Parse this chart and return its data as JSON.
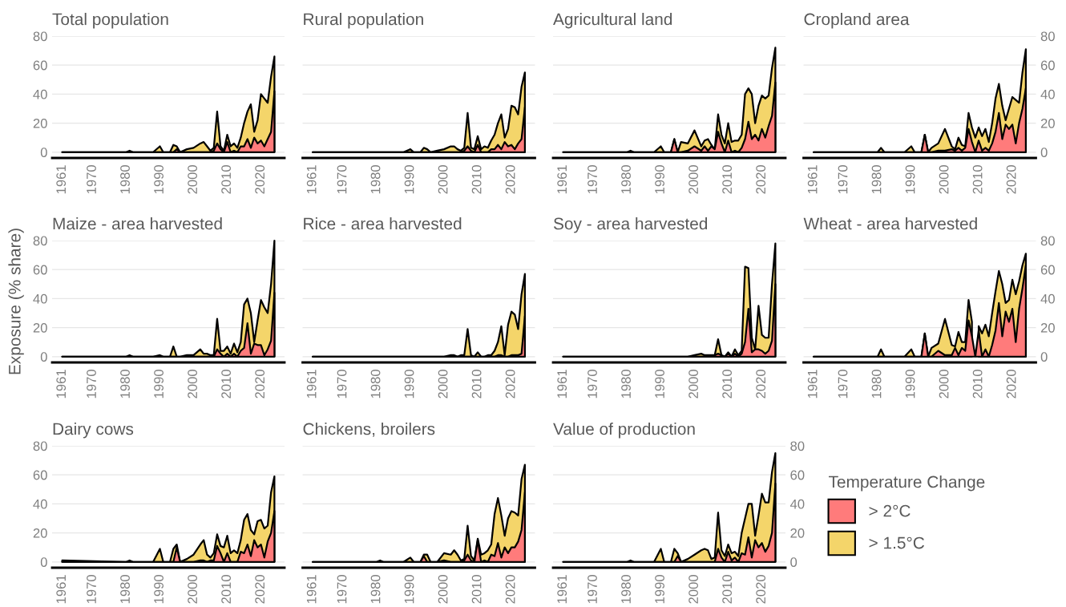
{
  "chart_data": [
    {
      "type": "area",
      "title": "Total population",
      "x": [
        1961,
        1980,
        1981,
        1982,
        1985,
        1988,
        1990,
        1991,
        1993,
        1994,
        1995,
        1996,
        1998,
        2000,
        2002,
        2003,
        2004,
        2005,
        2006,
        2007,
        2008,
        2009,
        2010,
        2011,
        2012,
        2013,
        2014,
        2015,
        2016,
        2017,
        2018,
        2019,
        2020,
        2021,
        2022,
        2023,
        2024
      ],
      "xlim": [
        1958,
        2027
      ],
      "xticks": [
        1961,
        1970,
        1980,
        1990,
        2000,
        2010,
        2020
      ],
      "ylim": [
        -4,
        80
      ],
      "yticks": [
        0,
        20,
        40,
        60,
        80
      ],
      "grid": "y",
      "series": [
        {
          "color": "#ff7b7b",
          "values": [
            0,
            0,
            0,
            0,
            0,
            0,
            0,
            0,
            0,
            0,
            2,
            0,
            0,
            0,
            0,
            0,
            0,
            0,
            1,
            6,
            2,
            0,
            7,
            0,
            1,
            0,
            4,
            4,
            9,
            3,
            10,
            6,
            8,
            4,
            9,
            14,
            42
          ]
        },
        {
          "color": "#f4d56a",
          "values": [
            0,
            0,
            1,
            0,
            0,
            0,
            4,
            0,
            0,
            5,
            4,
            0,
            2,
            3,
            6,
            7,
            4,
            1,
            3,
            28,
            4,
            1,
            12,
            4,
            6,
            3,
            10,
            20,
            28,
            33,
            14,
            22,
            40,
            37,
            34,
            52,
            66
          ]
        }
      ]
    },
    {
      "type": "area",
      "title": "Rural population",
      "x": [
        1961,
        1980,
        1981,
        1982,
        1985,
        1988,
        1990,
        1991,
        1993,
        1994,
        1995,
        1996,
        1998,
        2000,
        2002,
        2003,
        2004,
        2005,
        2006,
        2007,
        2008,
        2009,
        2010,
        2011,
        2012,
        2013,
        2014,
        2015,
        2016,
        2017,
        2018,
        2019,
        2020,
        2021,
        2022,
        2023,
        2024
      ],
      "xlim": [
        1958,
        2027
      ],
      "xticks": [
        1961,
        1970,
        1980,
        1990,
        2000,
        2010,
        2020
      ],
      "ylim": [
        -4,
        80
      ],
      "yticks": [
        0,
        20,
        40,
        60,
        80
      ],
      "grid": "y",
      "tick_labels": "x",
      "series": [
        {
          "color": "#ff7b7b",
          "values": [
            0,
            0,
            0,
            0,
            0,
            0,
            0,
            0,
            0,
            0,
            0,
            0,
            0,
            0,
            0,
            0,
            0,
            0,
            1,
            4,
            1,
            0,
            5,
            0,
            0,
            0,
            2,
            2,
            5,
            2,
            7,
            4,
            5,
            2,
            6,
            9,
            31
          ]
        },
        {
          "color": "#f4d56a",
          "values": [
            0,
            0,
            0,
            0,
            0,
            0,
            2,
            0,
            0,
            3,
            2,
            0,
            1,
            2,
            4,
            4,
            2,
            1,
            3,
            27,
            3,
            2,
            11,
            2,
            4,
            3,
            8,
            12,
            20,
            26,
            10,
            16,
            32,
            31,
            26,
            45,
            55
          ]
        }
      ]
    },
    {
      "type": "area",
      "title": "Agricultural land",
      "x": [
        1961,
        1980,
        1981,
        1982,
        1985,
        1988,
        1990,
        1991,
        1993,
        1994,
        1995,
        1996,
        1998,
        2000,
        2002,
        2003,
        2004,
        2005,
        2006,
        2007,
        2008,
        2009,
        2010,
        2011,
        2012,
        2013,
        2014,
        2015,
        2016,
        2017,
        2018,
        2019,
        2020,
        2021,
        2022,
        2023,
        2024
      ],
      "xlim": [
        1958,
        2027
      ],
      "xticks": [
        1961,
        1970,
        1980,
        1990,
        2000,
        2010,
        2020
      ],
      "ylim": [
        -4,
        80
      ],
      "yticks": [
        0,
        20,
        40,
        60,
        80
      ],
      "grid": "y",
      "tick_labels": "x",
      "series": [
        {
          "color": "#ff7b7b",
          "values": [
            0,
            0,
            0,
            0,
            0,
            0,
            0,
            0,
            0,
            9,
            0,
            0,
            1,
            4,
            1,
            4,
            1,
            4,
            2,
            14,
            6,
            0,
            8,
            0,
            1,
            0,
            3,
            9,
            21,
            9,
            12,
            8,
            16,
            10,
            18,
            25,
            48
          ]
        },
        {
          "color": "#f4d56a",
          "values": [
            0,
            0,
            1,
            0,
            0,
            0,
            4,
            0,
            0,
            9,
            0,
            7,
            6,
            15,
            4,
            8,
            9,
            5,
            2,
            26,
            12,
            6,
            20,
            7,
            8,
            8,
            12,
            40,
            44,
            40,
            20,
            32,
            39,
            37,
            39,
            58,
            72
          ]
        }
      ]
    },
    {
      "type": "area",
      "title": "Cropland area",
      "x": [
        1961,
        1980,
        1981,
        1982,
        1985,
        1988,
        1990,
        1991,
        1993,
        1994,
        1995,
        1996,
        1998,
        2000,
        2002,
        2003,
        2004,
        2005,
        2006,
        2007,
        2008,
        2009,
        2010,
        2011,
        2012,
        2013,
        2014,
        2015,
        2016,
        2017,
        2018,
        2019,
        2020,
        2021,
        2022,
        2023,
        2024
      ],
      "xlim": [
        1958,
        2027
      ],
      "xticks": [
        1961,
        1970,
        1980,
        1990,
        2000,
        2010,
        2020
      ],
      "ylim": [
        -4,
        80
      ],
      "yticks": [
        0,
        20,
        40,
        60,
        80
      ],
      "grid": "y",
      "series": [
        {
          "color": "#ff7b7b",
          "values": [
            0,
            0,
            0,
            0,
            0,
            0,
            0,
            0,
            0,
            12,
            0,
            0,
            1,
            1,
            2,
            1,
            3,
            1,
            3,
            16,
            7,
            0,
            8,
            1,
            3,
            1,
            6,
            14,
            27,
            9,
            19,
            16,
            19,
            6,
            20,
            30,
            44
          ]
        },
        {
          "color": "#f4d56a",
          "values": [
            0,
            0,
            3,
            0,
            0,
            0,
            4,
            0,
            0,
            12,
            0,
            3,
            6,
            16,
            4,
            2,
            10,
            5,
            4,
            27,
            17,
            10,
            17,
            11,
            16,
            7,
            20,
            37,
            47,
            32,
            22,
            30,
            38,
            36,
            34,
            55,
            71
          ]
        }
      ]
    },
    {
      "type": "area",
      "title": "Maize - area harvested",
      "ylabel": "Exposure (% share)",
      "x": [
        1961,
        1980,
        1981,
        1982,
        1985,
        1988,
        1990,
        1991,
        1993,
        1994,
        1995,
        1996,
        1998,
        2000,
        2002,
        2003,
        2004,
        2005,
        2006,
        2007,
        2008,
        2009,
        2010,
        2011,
        2012,
        2013,
        2014,
        2015,
        2016,
        2017,
        2018,
        2019,
        2020,
        2021,
        2022,
        2023,
        2024
      ],
      "xlim": [
        1958,
        2027
      ],
      "xticks": [
        1961,
        1970,
        1980,
        1990,
        2000,
        2010,
        2020
      ],
      "ylim": [
        -4,
        80
      ],
      "yticks": [
        0,
        20,
        40,
        60,
        80
      ],
      "grid": "y",
      "series": [
        {
          "color": "#ff7b7b",
          "values": [
            0,
            0,
            0,
            0,
            0,
            0,
            0,
            0,
            0,
            0,
            0,
            0,
            0,
            0,
            0,
            0,
            0,
            0,
            0,
            5,
            2,
            0,
            2,
            0,
            2,
            0,
            4,
            6,
            23,
            2,
            9,
            8,
            8,
            1,
            5,
            11,
            44
          ]
        },
        {
          "color": "#f4d56a",
          "values": [
            0,
            0,
            1,
            0,
            0,
            0,
            1,
            0,
            0,
            7,
            0,
            0,
            1,
            1,
            5,
            2,
            2,
            1,
            1,
            26,
            4,
            4,
            7,
            2,
            9,
            3,
            10,
            36,
            40,
            30,
            10,
            25,
            39,
            34,
            30,
            50,
            80
          ]
        }
      ]
    },
    {
      "type": "area",
      "title": "Rice - area harvested",
      "x": [
        1961,
        1980,
        1981,
        1982,
        1985,
        1988,
        1990,
        1991,
        1993,
        1994,
        1995,
        1996,
        1998,
        2000,
        2002,
        2003,
        2004,
        2005,
        2006,
        2007,
        2008,
        2009,
        2010,
        2011,
        2012,
        2013,
        2014,
        2015,
        2016,
        2017,
        2018,
        2019,
        2020,
        2021,
        2022,
        2023,
        2024
      ],
      "xlim": [
        1958,
        2027
      ],
      "xticks": [
        1961,
        1970,
        1980,
        1990,
        2000,
        2010,
        2020
      ],
      "ylim": [
        -4,
        80
      ],
      "yticks": [
        0,
        20,
        40,
        60,
        80
      ],
      "grid": "y",
      "tick_labels": "x",
      "series": [
        {
          "color": "#ff7b7b",
          "values": [
            0,
            0,
            0,
            0,
            0,
            0,
            0,
            0,
            0,
            0,
            0,
            0,
            0,
            0,
            0,
            0,
            0,
            0,
            0,
            0,
            0,
            0,
            0,
            0,
            0,
            0,
            0,
            0,
            1,
            1,
            0,
            0,
            1,
            1,
            1,
            2,
            28
          ]
        },
        {
          "color": "#f4d56a",
          "values": [
            0,
            0,
            0,
            0,
            0,
            0,
            0,
            0,
            0,
            0,
            0,
            0,
            0,
            0,
            1,
            1,
            0,
            1,
            1,
            19,
            1,
            0,
            3,
            0,
            0,
            1,
            1,
            4,
            10,
            21,
            1,
            22,
            31,
            29,
            19,
            43,
            57
          ]
        }
      ]
    },
    {
      "type": "area",
      "title": "Soy - area harvested",
      "x": [
        1961,
        1980,
        1981,
        1982,
        1985,
        1988,
        1990,
        1991,
        1993,
        1994,
        1995,
        1996,
        1998,
        2000,
        2002,
        2003,
        2004,
        2005,
        2006,
        2007,
        2008,
        2009,
        2010,
        2011,
        2012,
        2013,
        2014,
        2015,
        2016,
        2017,
        2018,
        2019,
        2020,
        2021,
        2022,
        2023,
        2024
      ],
      "xlim": [
        1958,
        2027
      ],
      "xticks": [
        1961,
        1970,
        1980,
        1990,
        2000,
        2010,
        2020
      ],
      "ylim": [
        -4,
        80
      ],
      "yticks": [
        0,
        20,
        40,
        60,
        80
      ],
      "grid": "y",
      "tick_labels": "x",
      "series": [
        {
          "color": "#ff7b7b",
          "values": [
            0,
            0,
            0,
            0,
            0,
            0,
            0,
            0,
            0,
            0,
            0,
            0,
            0,
            0,
            0,
            0,
            0,
            0,
            1,
            2,
            1,
            0,
            2,
            0,
            2,
            0,
            2,
            10,
            33,
            3,
            5,
            5,
            4,
            2,
            4,
            11,
            50
          ]
        },
        {
          "color": "#f4d56a",
          "values": [
            0,
            0,
            0,
            0,
            0,
            0,
            0,
            0,
            0,
            0,
            0,
            0,
            0,
            1,
            2,
            1,
            1,
            1,
            1,
            12,
            1,
            0,
            3,
            0,
            5,
            1,
            4,
            62,
            61,
            13,
            5,
            35,
            15,
            13,
            13,
            50,
            78
          ]
        }
      ]
    },
    {
      "type": "area",
      "title": "Wheat - area harvested",
      "x": [
        1961,
        1980,
        1981,
        1982,
        1985,
        1988,
        1990,
        1991,
        1993,
        1994,
        1995,
        1996,
        1998,
        2000,
        2002,
        2003,
        2004,
        2005,
        2006,
        2007,
        2008,
        2009,
        2010,
        2011,
        2012,
        2013,
        2014,
        2015,
        2016,
        2017,
        2018,
        2019,
        2020,
        2021,
        2022,
        2023,
        2024
      ],
      "xlim": [
        1958,
        2027
      ],
      "xticks": [
        1961,
        1970,
        1980,
        1990,
        2000,
        2010,
        2020
      ],
      "ylim": [
        -4,
        80
      ],
      "yticks": [
        0,
        20,
        40,
        60,
        80
      ],
      "grid": "y",
      "series": [
        {
          "color": "#ff7b7b",
          "values": [
            0,
            0,
            0,
            0,
            0,
            0,
            0,
            0,
            0,
            16,
            0,
            0,
            4,
            1,
            1,
            6,
            1,
            6,
            4,
            25,
            14,
            0,
            18,
            0,
            5,
            0,
            8,
            18,
            37,
            14,
            31,
            24,
            33,
            10,
            33,
            47,
            63
          ]
        },
        {
          "color": "#f4d56a",
          "values": [
            0,
            0,
            5,
            0,
            0,
            0,
            5,
            0,
            0,
            16,
            0,
            6,
            9,
            26,
            8,
            7,
            17,
            10,
            10,
            39,
            24,
            null,
            21,
            16,
            22,
            14,
            30,
            45,
            59,
            50,
            37,
            39,
            53,
            43,
            52,
            63,
            71
          ]
        }
      ]
    },
    {
      "type": "area",
      "title": "Dairy cows",
      "x": [
        1961,
        1980,
        1981,
        1982,
        1985,
        1988,
        1990,
        1991,
        1993,
        1994,
        1995,
        1996,
        1998,
        2000,
        2002,
        2003,
        2004,
        2005,
        2006,
        2007,
        2008,
        2009,
        2010,
        2011,
        2012,
        2013,
        2014,
        2015,
        2016,
        2017,
        2018,
        2019,
        2020,
        2021,
        2022,
        2023,
        2024
      ],
      "xlim": [
        1958,
        2027
      ],
      "xticks": [
        1961,
        1970,
        1980,
        1990,
        2000,
        2010,
        2020
      ],
      "ylim": [
        -4,
        80
      ],
      "yticks": [
        0,
        20,
        40,
        60,
        80
      ],
      "grid": "y",
      "series": [
        {
          "color": "#ff7b7b",
          "values": [
            0,
            0,
            0,
            0,
            0,
            0,
            0,
            0,
            0,
            0,
            10,
            0,
            0,
            0,
            1,
            1,
            0,
            1,
            1,
            11,
            6,
            0,
            6,
            0,
            0,
            0,
            7,
            6,
            12,
            4,
            15,
            10,
            12,
            3,
            14,
            20,
            35
          ]
        },
        {
          "color": "#f4d56a",
          "values": [
            1,
            0,
            1,
            0,
            0,
            0,
            9,
            0,
            0,
            9,
            12,
            0,
            2,
            5,
            12,
            15,
            5,
            3,
            6,
            19,
            11,
            10,
            18,
            6,
            8,
            6,
            15,
            29,
            33,
            22,
            19,
            28,
            29,
            23,
            25,
            48,
            59
          ]
        }
      ]
    },
    {
      "type": "area",
      "title": "Chickens, broilers",
      "x": [
        1961,
        1980,
        1981,
        1982,
        1985,
        1988,
        1990,
        1991,
        1993,
        1994,
        1995,
        1996,
        1998,
        2000,
        2002,
        2003,
        2004,
        2005,
        2006,
        2007,
        2008,
        2009,
        2010,
        2011,
        2012,
        2013,
        2014,
        2015,
        2016,
        2017,
        2018,
        2019,
        2020,
        2021,
        2022,
        2023,
        2024
      ],
      "xlim": [
        1958,
        2027
      ],
      "xticks": [
        1961,
        1970,
        1980,
        1990,
        2000,
        2010,
        2020
      ],
      "ylim": [
        -4,
        80
      ],
      "yticks": [
        0,
        20,
        40,
        60,
        80
      ],
      "grid": "y",
      "tick_labels": "x",
      "series": [
        {
          "color": "#ff7b7b",
          "values": [
            0,
            0,
            0,
            0,
            0,
            0,
            0,
            0,
            0,
            4,
            0,
            0,
            0,
            1,
            0,
            0,
            0,
            0,
            1,
            5,
            1,
            0,
            15,
            0,
            1,
            0,
            5,
            4,
            13,
            3,
            10,
            6,
            10,
            10,
            14,
            22,
            48
          ]
        },
        {
          "color": "#f4d56a",
          "values": [
            0,
            0,
            1,
            0,
            0,
            0,
            3,
            0,
            0,
            5,
            5,
            0,
            0,
            6,
            5,
            8,
            5,
            1,
            2,
            25,
            4,
            1,
            16,
            5,
            6,
            8,
            12,
            33,
            44,
            32,
            18,
            30,
            35,
            34,
            32,
            57,
            67
          ]
        }
      ]
    },
    {
      "type": "area",
      "title": "Value of production",
      "legend": "right",
      "legend_title": "Temperature Change",
      "x": [
        1961,
        1980,
        1981,
        1982,
        1985,
        1988,
        1990,
        1991,
        1993,
        1994,
        1995,
        1996,
        1998,
        2000,
        2002,
        2003,
        2004,
        2005,
        2006,
        2007,
        2008,
        2009,
        2010,
        2011,
        2012,
        2013,
        2014,
        2015,
        2016,
        2017,
        2018,
        2019,
        2020,
        2021,
        2022,
        2023,
        2024
      ],
      "xlim": [
        1958,
        2027
      ],
      "xticks": [
        1961,
        1970,
        1980,
        1990,
        2000,
        2010,
        2020
      ],
      "ylim": [
        -4,
        80
      ],
      "yticks": [
        0,
        20,
        40,
        60,
        80
      ],
      "grid": "y",
      "series": [
        {
          "name": "> 2°C",
          "color": "#ff7b7b",
          "values": [
            0,
            0,
            0,
            0,
            0,
            0,
            0,
            0,
            0,
            0,
            4,
            0,
            0,
            0,
            0,
            0,
            0,
            0,
            0,
            9,
            3,
            0,
            7,
            1,
            3,
            0,
            6,
            5,
            17,
            3,
            15,
            10,
            13,
            7,
            11,
            20,
            54
          ]
        },
        {
          "name": "> 1.5°C",
          "color": "#f4d56a",
          "values": [
            0,
            0,
            1,
            0,
            0,
            0,
            9,
            0,
            0,
            9,
            6,
            0,
            2,
            5,
            8,
            9,
            8,
            2,
            3,
            34,
            8,
            4,
            12,
            6,
            7,
            4,
            20,
            30,
            40,
            40,
            18,
            32,
            47,
            41,
            41,
            62,
            75
          ]
        }
      ]
    }
  ]
}
